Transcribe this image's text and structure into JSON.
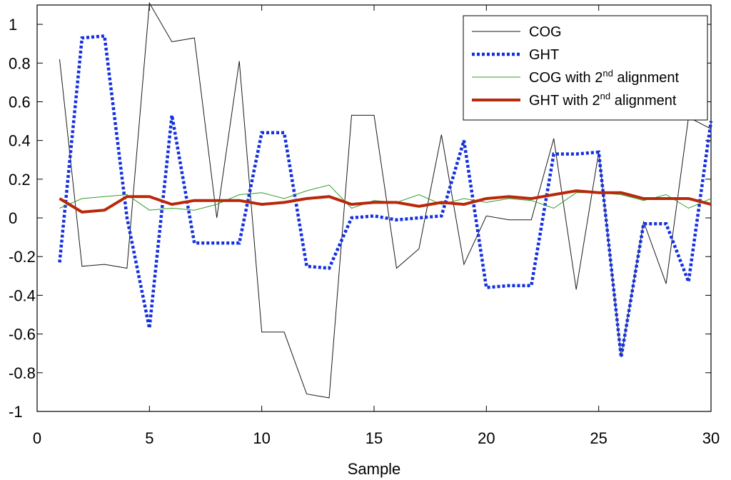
{
  "chart_data": {
    "type": "line",
    "title": "",
    "xlabel": "Sample",
    "ylabel": "",
    "xlim": [
      0,
      30
    ],
    "ylim": [
      -1,
      1.1
    ],
    "xticks": [
      0,
      5,
      10,
      15,
      20,
      25,
      30
    ],
    "yticks": [
      -1,
      -0.8,
      -0.6,
      -0.4,
      -0.2,
      0,
      0.2,
      0.4,
      0.6,
      0.8,
      1
    ],
    "ytick_labels": [
      "-1",
      "-0.8",
      "-0.6",
      "-0.4",
      "-0.2",
      "0",
      "0.2",
      "0.4",
      "0.6",
      "0.8",
      "1"
    ],
    "grid": false,
    "legend_position": "top-right",
    "x": [
      1,
      2,
      3,
      4,
      5,
      6,
      7,
      8,
      9,
      10,
      11,
      12,
      13,
      14,
      15,
      16,
      17,
      18,
      19,
      20,
      21,
      22,
      23,
      24,
      25,
      26,
      27,
      28,
      29,
      30
    ],
    "series": [
      {
        "name": "COG",
        "legend_main": "COG",
        "legend_sup": "",
        "legend_tail": "",
        "color": "#1a1a1a",
        "style": "solid-thin",
        "values": [
          0.82,
          -0.25,
          -0.24,
          -0.26,
          1.11,
          0.91,
          0.93,
          0.0,
          0.81,
          -0.59,
          -0.59,
          -0.91,
          -0.93,
          0.53,
          0.53,
          -0.26,
          -0.16,
          0.43,
          -0.24,
          0.01,
          -0.01,
          -0.01,
          0.41,
          -0.37,
          0.34,
          -0.72,
          -0.02,
          -0.34,
          0.52,
          0.46
        ]
      },
      {
        "name": "GHT",
        "legend_main": "GHT",
        "legend_sup": "",
        "legend_tail": "",
        "color": "#1430e0",
        "style": "dotted-thick",
        "values": [
          -0.23,
          0.93,
          0.94,
          0.0,
          -0.57,
          0.53,
          -0.13,
          -0.13,
          -0.13,
          0.44,
          0.44,
          -0.25,
          -0.26,
          0.0,
          0.01,
          -0.01,
          0.0,
          0.01,
          0.4,
          -0.36,
          -0.35,
          -0.35,
          0.33,
          0.33,
          0.34,
          -0.72,
          -0.03,
          -0.03,
          -0.33,
          0.5
        ]
      },
      {
        "name": "COG with 2nd alignment",
        "legend_main": "COG with 2",
        "legend_sup": "nd",
        "legend_tail": " alignment",
        "color": "#2ca02c",
        "style": "solid-thin",
        "values": [
          0.05,
          0.1,
          0.11,
          0.12,
          0.04,
          0.05,
          0.04,
          0.07,
          0.12,
          0.13,
          0.1,
          0.14,
          0.17,
          0.05,
          0.09,
          0.08,
          0.12,
          0.07,
          0.1,
          0.08,
          0.1,
          0.09,
          0.05,
          0.13,
          0.13,
          0.12,
          0.09,
          0.12,
          0.05,
          0.1
        ]
      },
      {
        "name": "GHT with 2nd alignment",
        "legend_main": "GHT with 2",
        "legend_sup": "nd",
        "legend_tail": " alignment",
        "color": "#b8280a",
        "style": "solid-thick",
        "values": [
          0.1,
          0.03,
          0.04,
          0.11,
          0.11,
          0.07,
          0.09,
          0.09,
          0.09,
          0.07,
          0.08,
          0.1,
          0.11,
          0.07,
          0.08,
          0.08,
          0.06,
          0.08,
          0.07,
          0.1,
          0.11,
          0.1,
          0.12,
          0.14,
          0.13,
          0.13,
          0.1,
          0.1,
          0.1,
          0.07
        ]
      }
    ]
  }
}
